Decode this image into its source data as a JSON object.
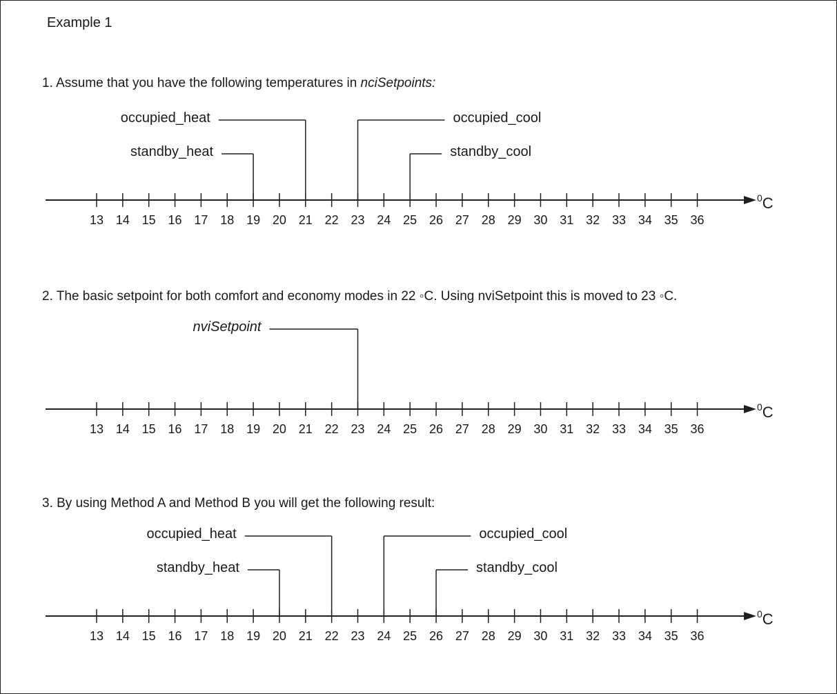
{
  "title": "Example 1",
  "steps": [
    {
      "prefix": "1. Assume that you have the following temperatures in ",
      "italic": "nciSetpoints:"
    },
    {
      "text": "2. The basic setpoint for both comfort and economy modes in 22 ◦C. Using nviSetpoint this is moved to 23 ◦C."
    },
    {
      "text": "3. By using Method A and Method B you will get the following result:"
    }
  ],
  "unit_sup": "0",
  "unit": "C",
  "ticks": [
    13,
    14,
    15,
    16,
    17,
    18,
    19,
    20,
    21,
    22,
    23,
    24,
    25,
    26,
    27,
    28,
    29,
    30,
    31,
    32,
    33,
    34,
    35,
    36
  ],
  "scales": [
    {
      "markers": [
        {
          "label": "occupied_heat",
          "value": 21,
          "side": "left",
          "level": "high"
        },
        {
          "label": "standby_heat",
          "value": 19,
          "side": "left",
          "level": "low"
        },
        {
          "label": "occupied_cool",
          "value": 23,
          "side": "right",
          "level": "high"
        },
        {
          "label": "standby_cool",
          "value": 25,
          "side": "right",
          "level": "low"
        }
      ]
    },
    {
      "markers": [
        {
          "label": "nviSetpoint",
          "value": 23,
          "side": "left",
          "level": "high",
          "italic": true
        }
      ]
    },
    {
      "markers": [
        {
          "label": "occupied_heat",
          "value": 22,
          "side": "left",
          "level": "high"
        },
        {
          "label": "standby_heat",
          "value": 20,
          "side": "left",
          "level": "low"
        },
        {
          "label": "occupied_cool",
          "value": 24,
          "side": "right",
          "level": "high"
        },
        {
          "label": "standby_cool",
          "value": 26,
          "side": "right",
          "level": "low"
        }
      ]
    }
  ]
}
